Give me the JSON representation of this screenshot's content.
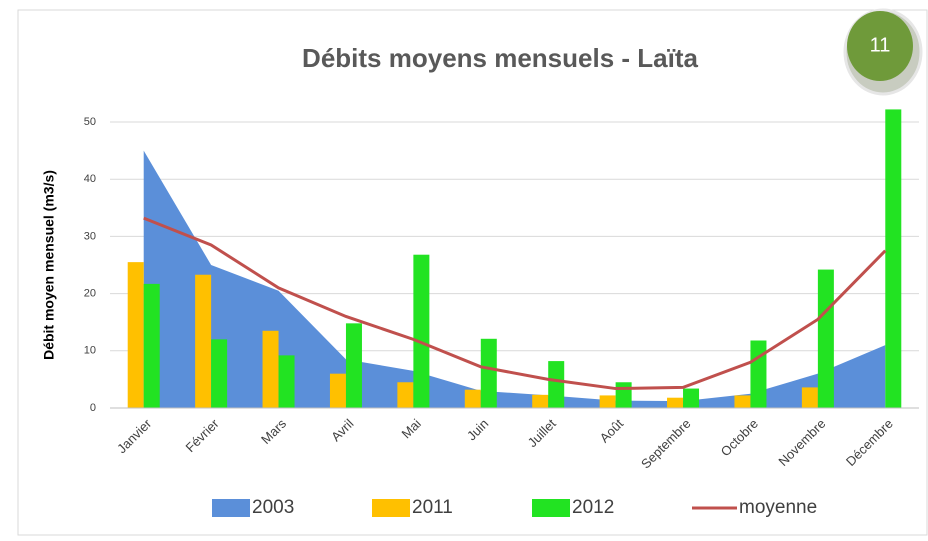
{
  "badge": "11",
  "chart_data": {
    "type": "combo",
    "title": "Débits moyens mensuels - Laïta",
    "y_label": "Débit moyen mensuel (m3/s)",
    "categories": [
      "Janvier",
      "Février",
      "Mars",
      "Avril",
      "Mai",
      "Juin",
      "Juillet",
      "Août",
      "Septembre",
      "Octobre",
      "Novembre",
      "Décembre"
    ],
    "series": [
      {
        "name": "2003",
        "type": "area",
        "color": "#5B8FD9",
        "values": [
          45,
          25,
          20.5,
          8.5,
          6.5,
          3,
          2.2,
          1.3,
          1.2,
          2.5,
          6,
          11
        ]
      },
      {
        "name": "2011",
        "type": "bar",
        "color": "#FFC000",
        "values": [
          25.5,
          23.3,
          13.5,
          6,
          4.5,
          3.2,
          2.3,
          2.2,
          1.8,
          2.2,
          3.6,
          null
        ]
      },
      {
        "name": "2012",
        "type": "bar",
        "color": "#22E322",
        "values": [
          21.7,
          12,
          9.2,
          14.8,
          26.8,
          12.1,
          8.2,
          4.5,
          3.4,
          11.8,
          24.2,
          52.2
        ]
      },
      {
        "name": "moyenne",
        "type": "line",
        "color": "#C0504D",
        "values": [
          33.2,
          28.5,
          21,
          16,
          12,
          7.2,
          5,
          3.4,
          3.6,
          8,
          15.5,
          27.5
        ]
      }
    ],
    "ylim": [
      0,
      50
    ],
    "yticks": [
      0,
      10,
      20,
      30,
      40,
      50
    ],
    "grid": true,
    "legend": "bottom"
  }
}
